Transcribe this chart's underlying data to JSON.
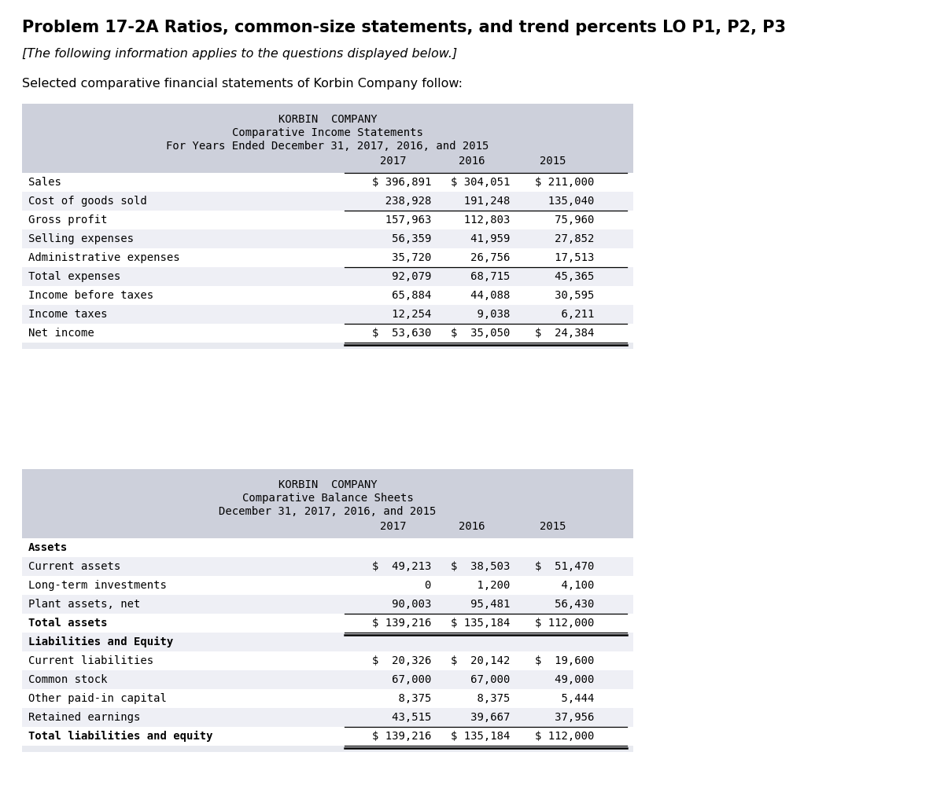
{
  "title": "Problem 17-2A Ratios, common-size statements, and trend percents LO P1, P2, P3",
  "subtitle": "[The following information applies to the questions displayed below.]",
  "intro": "Selected comparative financial statements of Korbin Company follow:",
  "bg_color": "#cdd0db",
  "table_bg": "#e8eaf0",
  "income_statement": {
    "company": "KORBIN  COMPANY",
    "line1": "Comparative Income Statements",
    "line2": "For Years Ended December 31, 2017, 2016, and 2015",
    "col_headers": [
      "2017",
      "2016",
      "2015"
    ],
    "rows": [
      {
        "label": "Sales",
        "vals": [
          "$ 396,891",
          "$ 304,051",
          "$ 211,000"
        ],
        "top_border": true,
        "double_bottom": false
      },
      {
        "label": "Cost of goods sold",
        "vals": [
          "  238,928",
          "  191,248",
          "  135,040"
        ],
        "top_border": false,
        "double_bottom": false
      },
      {
        "label": "Gross profit",
        "vals": [
          "  157,963",
          "  112,803",
          "   75,960"
        ],
        "top_border": true,
        "double_bottom": false
      },
      {
        "label": "Selling expenses",
        "vals": [
          "   56,359",
          "   41,959",
          "   27,852"
        ],
        "top_border": false,
        "double_bottom": false
      },
      {
        "label": "Administrative expenses",
        "vals": [
          "   35,720",
          "   26,756",
          "   17,513"
        ],
        "top_border": false,
        "double_bottom": false
      },
      {
        "label": "Total expenses",
        "vals": [
          "   92,079",
          "   68,715",
          "   45,365"
        ],
        "top_border": true,
        "double_bottom": false
      },
      {
        "label": "Income before taxes",
        "vals": [
          "   65,884",
          "   44,088",
          "   30,595"
        ],
        "top_border": false,
        "double_bottom": false
      },
      {
        "label": "Income taxes",
        "vals": [
          "   12,254",
          "    9,038",
          "    6,211"
        ],
        "top_border": false,
        "double_bottom": false
      },
      {
        "label": "Net income",
        "vals": [
          "$  53,630",
          "$  35,050",
          "$  24,384"
        ],
        "top_border": true,
        "double_bottom": true
      }
    ]
  },
  "balance_sheet": {
    "company": "KORBIN  COMPANY",
    "line1": "Comparative Balance Sheets",
    "line2": "December 31, 2017, 2016, and 2015",
    "col_headers": [
      "2017",
      "2016",
      "2015"
    ],
    "sections": [
      {
        "header": "Assets",
        "rows": [
          {
            "label": "Current assets",
            "vals": [
              "$  49,213",
              "$  38,503",
              "$  51,470"
            ],
            "top_border": false,
            "double_bottom": false
          },
          {
            "label": "Long-term investments",
            "vals": [
              "        0",
              "    1,200",
              "    4,100"
            ],
            "top_border": false,
            "double_bottom": false
          },
          {
            "label": "Plant assets, net",
            "vals": [
              "   90,003",
              "   95,481",
              "   56,430"
            ],
            "top_border": false,
            "double_bottom": false
          },
          {
            "label": "Total assets",
            "vals": [
              "$ 139,216",
              "$ 135,184",
              "$ 112,000"
            ],
            "top_border": true,
            "double_bottom": true
          }
        ]
      },
      {
        "header": "Liabilities and Equity",
        "rows": [
          {
            "label": "Current liabilities",
            "vals": [
              "$  20,326",
              "$  20,142",
              "$  19,600"
            ],
            "top_border": false,
            "double_bottom": false
          },
          {
            "label": "Common stock",
            "vals": [
              "   67,000",
              "   67,000",
              "   49,000"
            ],
            "top_border": false,
            "double_bottom": false
          },
          {
            "label": "Other paid-in capital",
            "vals": [
              "    8,375",
              "    8,375",
              "    5,444"
            ],
            "top_border": false,
            "double_bottom": false
          },
          {
            "label": "Retained earnings",
            "vals": [
              "   43,515",
              "   39,667",
              "   37,956"
            ],
            "top_border": false,
            "double_bottom": false
          },
          {
            "label": "Total liabilities and equity",
            "vals": [
              "$ 139,216",
              "$ 135,184",
              "$ 112,000"
            ],
            "top_border": true,
            "double_bottom": true
          }
        ]
      }
    ]
  }
}
